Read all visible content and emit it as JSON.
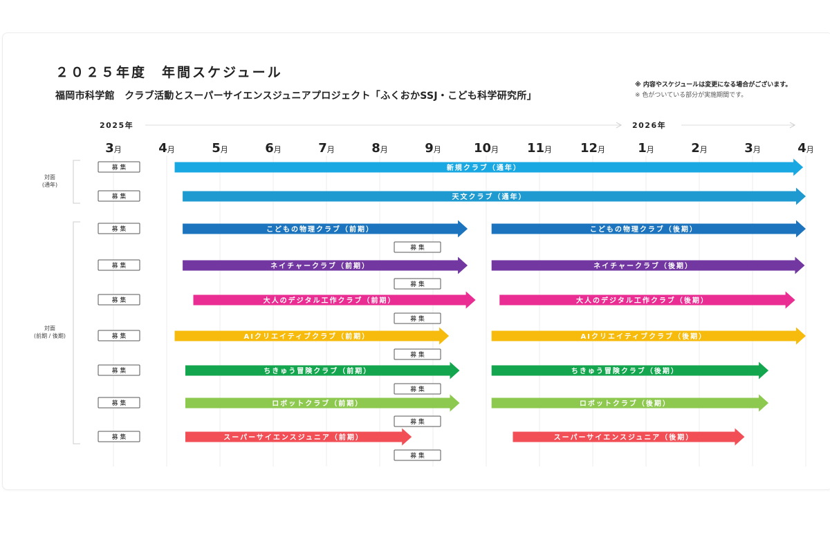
{
  "title": "２０２５年度　年間スケジュール",
  "subtitle": "福岡市科学館　クラブ活動とスーパーサイエンスジュニアプロジェクト「ふくおかSSJ・こども科学研究所」",
  "notes": [
    "※ 内容やスケジュールは変更になる場合がございます。",
    "※ 色がついている部分が実施期間です。"
  ],
  "years": [
    {
      "label": "2025年",
      "at_month": 0
    },
    {
      "label": "2026年",
      "at_month": 10
    }
  ],
  "months": [
    {
      "num": "3",
      "unit": "月"
    },
    {
      "num": "4",
      "unit": "月"
    },
    {
      "num": "5",
      "unit": "月"
    },
    {
      "num": "6",
      "unit": "月"
    },
    {
      "num": "7",
      "unit": "月"
    },
    {
      "num": "8",
      "unit": "月"
    },
    {
      "num": "9",
      "unit": "月"
    },
    {
      "num": "10",
      "unit": "月"
    },
    {
      "num": "11",
      "unit": "月"
    },
    {
      "num": "12",
      "unit": "月"
    },
    {
      "num": "1",
      "unit": "月"
    },
    {
      "num": "2",
      "unit": "月"
    },
    {
      "num": "3",
      "unit": "月"
    },
    {
      "num": "4",
      "unit": "月"
    }
  ],
  "groups": [
    {
      "label_lines": [
        "対面",
        "(通年)"
      ],
      "rows": [
        0,
        1
      ]
    },
    {
      "label_lines": [
        "対面",
        "(前期 / 後期)"
      ],
      "rows": [
        2,
        8
      ]
    }
  ],
  "recruit_label": "募 集",
  "recruit_mid_at": 6.0,
  "rows": [
    {
      "color": "#1aa8e2",
      "recruit_mid": false,
      "bars": [
        {
          "label": "新規クラブ（通年）",
          "start": 1.15,
          "end": 12.95
        }
      ]
    },
    {
      "color": "#1e9ad0",
      "recruit_mid": false,
      "bars": [
        {
          "label": "天文クラブ（通年）",
          "start": 1.3,
          "end": 13.0
        }
      ]
    },
    {
      "color": "#1b74bd",
      "recruit_mid": true,
      "bars": [
        {
          "label": "こどもの物理クラブ（前期）",
          "start": 1.3,
          "end": 6.65
        },
        {
          "label": "こどもの物理クラブ（後期）",
          "start": 7.1,
          "end": 13.0
        }
      ]
    },
    {
      "color": "#7237a0",
      "recruit_mid": true,
      "bars": [
        {
          "label": "ネイチャークラブ（前期）",
          "start": 1.3,
          "end": 6.65
        },
        {
          "label": "ネイチャークラブ（後期）",
          "start": 7.1,
          "end": 12.98
        }
      ]
    },
    {
      "color": "#ea2d92",
      "recruit_mid": true,
      "bars": [
        {
          "label": "大人のデジタル工作クラブ（前期）",
          "start": 1.5,
          "end": 6.8
        },
        {
          "label": "大人のデジタル工作クラブ（後期）",
          "start": 7.25,
          "end": 12.8
        }
      ]
    },
    {
      "color": "#f6bb0c",
      "recruit_mid": true,
      "bars": [
        {
          "label": "AIクリエイティブクラブ（前期）",
          "start": 1.15,
          "end": 6.3
        },
        {
          "label": "AIクリエイティブクラブ（後期）",
          "start": 7.1,
          "end": 13.0
        }
      ]
    },
    {
      "color": "#14a64e",
      "recruit_mid": true,
      "bars": [
        {
          "label": "ちきゅう冒険クラブ（前期）",
          "start": 1.35,
          "end": 6.5
        },
        {
          "label": "ちきゅう冒険クラブ（後期）",
          "start": 7.1,
          "end": 12.3
        }
      ]
    },
    {
      "color": "#8cc94e",
      "recruit_mid": true,
      "bars": [
        {
          "label": "ロボットクラブ（前期）",
          "start": 1.35,
          "end": 6.5
        },
        {
          "label": "ロボットクラブ（後期）",
          "start": 7.1,
          "end": 12.3
        }
      ]
    },
    {
      "color": "#f24e55",
      "recruit_mid": true,
      "bars": [
        {
          "label": "スーパーサイエンスジュニア（前期）",
          "start": 1.35,
          "end": 5.6
        },
        {
          "label": "スーパーサイエンスジュニア（後期）",
          "start": 7.5,
          "end": 11.85
        }
      ]
    }
  ]
}
